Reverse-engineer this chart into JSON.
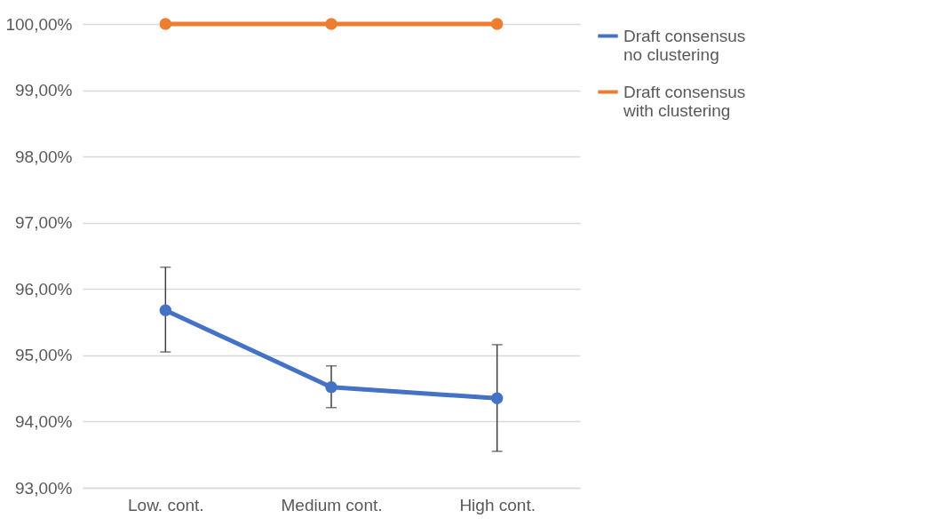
{
  "chart_data": {
    "type": "line",
    "categories": [
      "Low. cont.",
      "Medium cont.",
      "High cont."
    ],
    "series": [
      {
        "name": "Draft consensus\nno clustering",
        "color": "#4472c4",
        "values": [
          95.68,
          94.52,
          94.35
        ],
        "errors": [
          [
            95.05,
            96.33
          ],
          [
            94.21,
            94.84
          ],
          [
            93.55,
            95.16
          ]
        ]
      },
      {
        "name": "Draft consensus\nwith clustering",
        "color": "#ed7d31",
        "values": [
          100,
          100,
          100
        ]
      }
    ],
    "ylim": [
      93,
      100
    ],
    "yticks": [
      {
        "value": 93,
        "label": "93,00%"
      },
      {
        "value": 94,
        "label": "94,00%"
      },
      {
        "value": 95,
        "label": "95,00%"
      },
      {
        "value": 96,
        "label": "96,00%"
      },
      {
        "value": 97,
        "label": "97,00%"
      },
      {
        "value": 98,
        "label": "98,00%"
      },
      {
        "value": 99,
        "label": "99,00%"
      },
      {
        "value": 100,
        "label": "100,00%"
      }
    ],
    "grid": "y",
    "legend": "right",
    "marker": "circle",
    "line_style": "solid"
  }
}
